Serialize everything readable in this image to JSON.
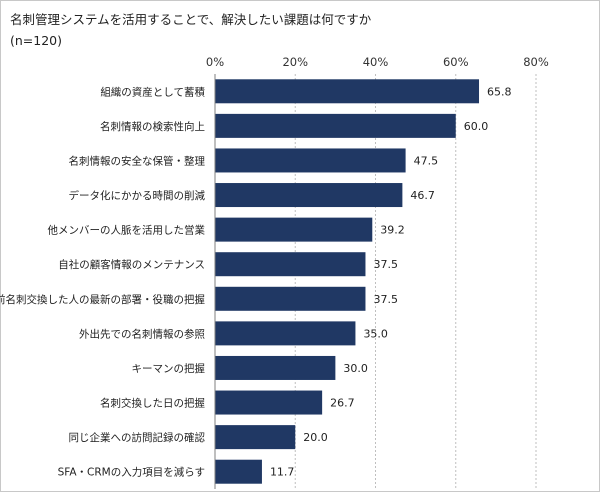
{
  "chart_data": {
    "type": "bar",
    "orientation": "horizontal",
    "title": "名刺管理システムを活用することで、解決したい課題は何ですか",
    "subtitle": "(n=120)",
    "categories": [
      "組織の資産として蓄積",
      "名刺情報の検索性向上",
      "名刺情報の安全な保管・整理",
      "データ化にかかる時間の削減",
      "他メンバーの人脈を活用した営業",
      "自社の顧客情報のメンテナンス",
      "以前名刺交換した人の最新の部署・役職の把握",
      "外出先での名刺情報の参照",
      "キーマンの把握",
      "名刺交換した日の把握",
      "同じ企業への訪問記録の確認",
      "SFA・CRMの入力項目を減らす"
    ],
    "values": [
      65.8,
      60.0,
      47.5,
      46.7,
      39.2,
      37.5,
      37.5,
      35.0,
      30.0,
      26.7,
      20.0,
      11.7
    ],
    "value_labels": [
      "65.8",
      "60.0",
      "47.5",
      "46.7",
      "39.2",
      "37.5",
      "37.5",
      "35.0",
      "30.0",
      "26.7",
      "20.0",
      "11.7"
    ],
    "xlim": [
      0,
      80
    ],
    "xticks": [
      0,
      20,
      40,
      60,
      80
    ],
    "xtick_labels": [
      "0%",
      "20%",
      "40%",
      "60%",
      "80%"
    ],
    "xaxis_position": "top",
    "grid": true,
    "bar_color": "#203864",
    "grid_color": "#bfbfbf"
  }
}
